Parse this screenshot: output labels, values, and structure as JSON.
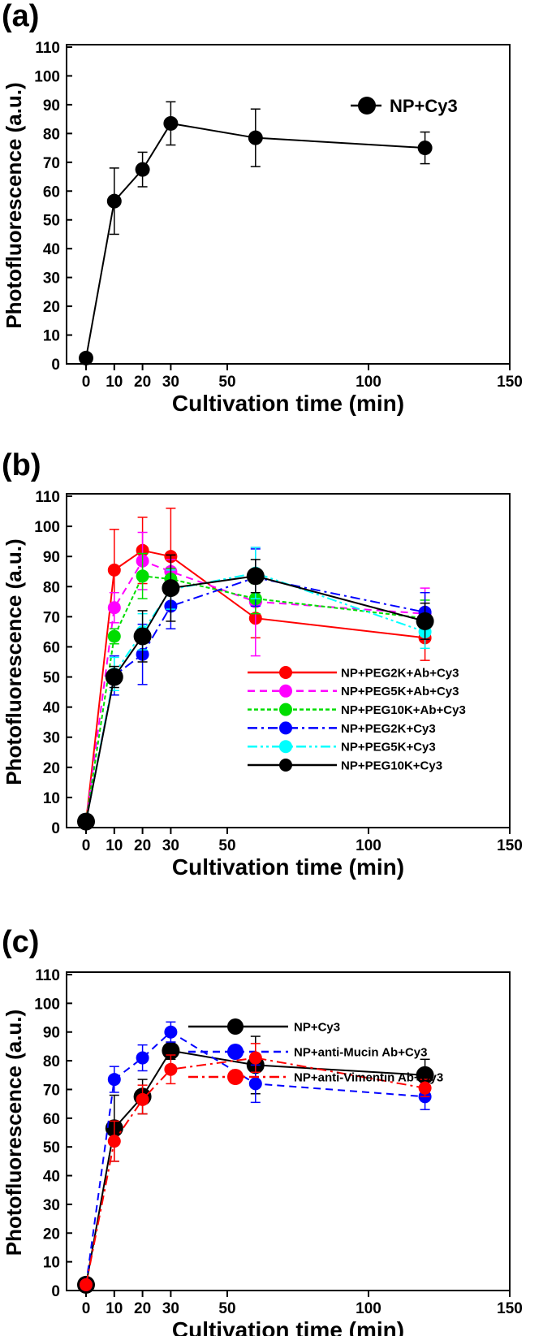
{
  "chart_data": [
    {
      "panel_label": "(a)",
      "type": "line",
      "xlabel": "Cultivation time (min)",
      "ylabel": "Photofluorescence (a.u.)",
      "xlim": [
        0,
        150
      ],
      "ylim": [
        0,
        110
      ],
      "xticks": [
        0,
        10,
        20,
        30,
        50,
        100,
        150
      ],
      "yticks": [
        0,
        10,
        20,
        30,
        40,
        50,
        60,
        70,
        80,
        90,
        100,
        110
      ],
      "legend_position": "top-right",
      "grid": false,
      "x": [
        0,
        10,
        20,
        30,
        60,
        120
      ],
      "series": [
        {
          "name": "NP+Cy3",
          "color": "#000000",
          "dash": "solid",
          "values": [
            2,
            56.5,
            67.5,
            83.5,
            78.5,
            75
          ],
          "errors": [
            0,
            11.5,
            6,
            7.5,
            10,
            5.5
          ]
        }
      ]
    },
    {
      "panel_label": "(b)",
      "type": "line",
      "xlabel": "Cultivation time (min)",
      "ylabel": "Photofluorescence (a.u.)",
      "xlim": [
        0,
        150
      ],
      "ylim": [
        0,
        110
      ],
      "xticks": [
        0,
        10,
        20,
        30,
        50,
        100,
        150
      ],
      "yticks": [
        0,
        10,
        20,
        30,
        40,
        50,
        60,
        70,
        80,
        90,
        100,
        110
      ],
      "legend_position": "bottom-right",
      "grid": false,
      "x": [
        0,
        10,
        20,
        30,
        60,
        120
      ],
      "series": [
        {
          "name": "NP+PEG2K+Ab+Cy3",
          "color": "#ff0000",
          "dash": "solid",
          "values": [
            2,
            85.5,
            92,
            90,
            69.5,
            63
          ],
          "errors": [
            0,
            13.5,
            11,
            16,
            6.5,
            7.5
          ]
        },
        {
          "name": "NP+PEG5K+Ab+Cy3",
          "color": "#ff00ff",
          "dash": "dashed",
          "values": [
            2,
            73,
            88.5,
            85,
            75,
            71
          ],
          "errors": [
            0,
            5,
            9.5,
            4,
            18,
            8.5
          ]
        },
        {
          "name": "NP+PEG10K+Ab+Cy3",
          "color": "#00dd00",
          "dash": "dotted",
          "values": [
            2,
            63.5,
            83.5,
            82.5,
            76,
            69.5
          ],
          "errors": [
            0,
            2.5,
            7.5,
            3.5,
            5,
            6
          ]
        },
        {
          "name": "NP+PEG2K+Cy3",
          "color": "#0000ff",
          "dash": "dashdot",
          "values": [
            2,
            50.5,
            57.5,
            73.5,
            83,
            71.5
          ],
          "errors": [
            0,
            6.5,
            10,
            7.5,
            9.5,
            6.5
          ]
        },
        {
          "name": "NP+PEG5K+Cy3",
          "color": "#00ffff",
          "dash": "dashdotdot",
          "values": [
            2,
            51,
            65,
            79,
            84.5,
            65
          ],
          "errors": [
            0,
            5.5,
            6,
            6.5,
            8.5,
            5.5
          ]
        },
        {
          "name": "NP+PEG10K+Cy3",
          "color": "#000000",
          "dash": "solid",
          "values": [
            2,
            50,
            63.5,
            79.5,
            83.5,
            68.5
          ],
          "errors": [
            0,
            3.5,
            8.5,
            11,
            5.5,
            6
          ]
        }
      ]
    },
    {
      "panel_label": "(c)",
      "type": "line",
      "xlabel": "Cultivation time (min)",
      "ylabel": "Photofluorescence (a.u.)",
      "xlim": [
        0,
        150
      ],
      "ylim": [
        0,
        110
      ],
      "xticks": [
        0,
        10,
        20,
        30,
        50,
        100,
        150
      ],
      "yticks": [
        0,
        10,
        20,
        30,
        40,
        50,
        60,
        70,
        80,
        90,
        100,
        110
      ],
      "legend_position": "center-right",
      "grid": false,
      "x": [
        0,
        10,
        20,
        30,
        60,
        120
      ],
      "series": [
        {
          "name": "NP+Cy3",
          "color": "#000000",
          "dash": "solid",
          "values": [
            2,
            56.5,
            67.5,
            83.5,
            78.5,
            75
          ],
          "errors": [
            0,
            11.5,
            6,
            3,
            10,
            5.5
          ]
        },
        {
          "name": "NP+anti-Mucin Ab+Cy3",
          "color": "#0000ff",
          "dash": "dashed",
          "values": [
            2,
            73.5,
            81,
            90,
            72,
            67.5
          ],
          "errors": [
            0,
            4.5,
            4.5,
            3.5,
            6.5,
            4.5
          ]
        },
        {
          "name": "NP+anti-Vimentin Ab+Cy3",
          "color": "#ff0000",
          "dash": "dashdot",
          "values": [
            2,
            52,
            66.5,
            77,
            81,
            70.5
          ],
          "errors": [
            0,
            7,
            5,
            5,
            5,
            3
          ]
        }
      ]
    }
  ]
}
